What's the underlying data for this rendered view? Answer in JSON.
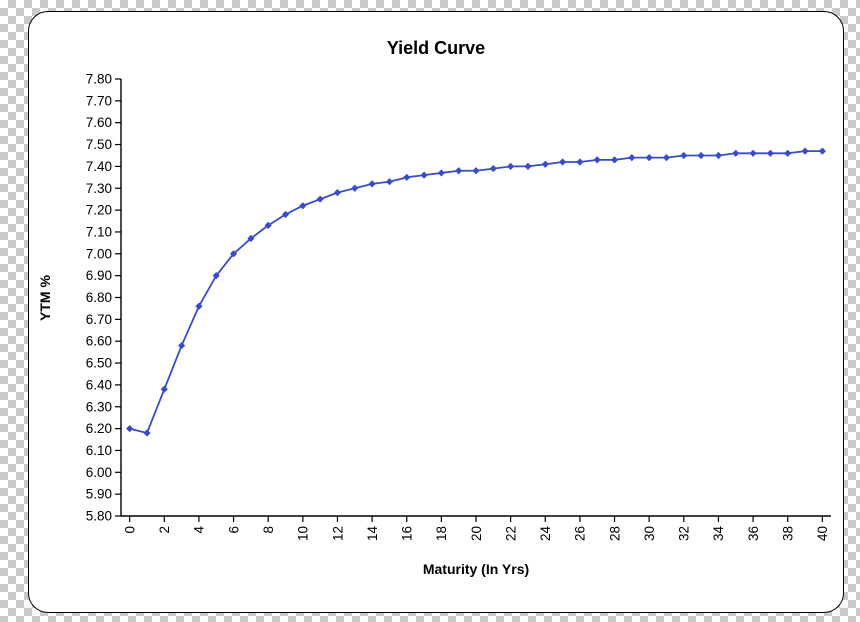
{
  "chart": {
    "title": "Yield Curve",
    "y_axis_title": "YTM %",
    "x_axis_title": "Maturity (In Yrs)"
  },
  "chart_data": {
    "type": "line",
    "title": "Yield Curve",
    "xlabel": "Maturity (In Yrs)",
    "ylabel": "YTM %",
    "x": [
      0,
      1,
      2,
      3,
      4,
      5,
      6,
      7,
      8,
      9,
      10,
      11,
      12,
      13,
      14,
      15,
      16,
      17,
      18,
      19,
      20,
      21,
      22,
      23,
      24,
      25,
      26,
      27,
      28,
      29,
      30,
      31,
      32,
      33,
      34,
      35,
      36,
      37,
      38,
      39,
      40
    ],
    "values": [
      6.2,
      6.18,
      6.38,
      6.58,
      6.76,
      6.9,
      7.0,
      7.07,
      7.13,
      7.18,
      7.22,
      7.25,
      7.28,
      7.3,
      7.32,
      7.33,
      7.35,
      7.36,
      7.37,
      7.38,
      7.38,
      7.39,
      7.4,
      7.4,
      7.41,
      7.42,
      7.42,
      7.43,
      7.43,
      7.44,
      7.44,
      7.44,
      7.45,
      7.45,
      7.45,
      7.46,
      7.46,
      7.46,
      7.46,
      7.47,
      7.47
    ],
    "ylim": [
      5.8,
      7.8
    ],
    "y_tick_step": 0.1,
    "xlim": [
      0,
      40
    ],
    "x_tick_step": 2,
    "grid": false,
    "legend": "none",
    "marker": "diamond",
    "line_color": "#3a4bc8",
    "marker_color": "#3a4bc8",
    "axis_color": "#000000"
  }
}
